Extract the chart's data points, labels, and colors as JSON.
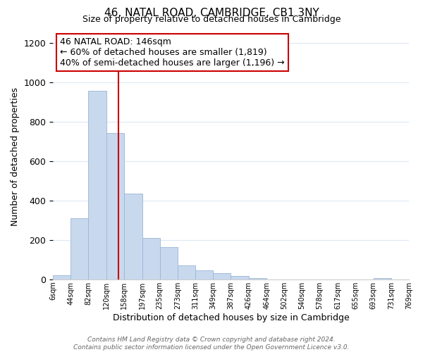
{
  "title": "46, NATAL ROAD, CAMBRIDGE, CB1 3NY",
  "subtitle": "Size of property relative to detached houses in Cambridge",
  "xlabel": "Distribution of detached houses by size in Cambridge",
  "ylabel": "Number of detached properties",
  "bar_color": "#c8d9ee",
  "bar_edge_color": "#9ab5d5",
  "bin_edges": [
    6,
    44,
    82,
    120,
    158,
    197,
    235,
    273,
    311,
    349,
    387,
    426,
    464,
    502,
    540,
    578,
    617,
    655,
    693,
    731,
    769
  ],
  "bin_labels": [
    "6sqm",
    "44sqm",
    "82sqm",
    "120sqm",
    "158sqm",
    "197sqm",
    "235sqm",
    "273sqm",
    "311sqm",
    "349sqm",
    "387sqm",
    "426sqm",
    "464sqm",
    "502sqm",
    "540sqm",
    "578sqm",
    "617sqm",
    "655sqm",
    "693sqm",
    "731sqm",
    "769sqm"
  ],
  "bar_heights": [
    20,
    310,
    960,
    745,
    435,
    210,
    165,
    72,
    47,
    33,
    18,
    7,
    0,
    0,
    0,
    0,
    0,
    0,
    8,
    0,
    0
  ],
  "vline_x": 146,
  "vline_color": "#cc0000",
  "annotation_line1": "46 NATAL ROAD: 146sqm",
  "annotation_line2": "← 60% of detached houses are smaller (1,819)",
  "annotation_line3": "40% of semi-detached houses are larger (1,196) →",
  "annotation_box_color": "#ffffff",
  "annotation_box_edge": "#cc0000",
  "ylim": [
    0,
    1250
  ],
  "yticks": [
    0,
    200,
    400,
    600,
    800,
    1000,
    1200
  ],
  "footer_line1": "Contains HM Land Registry data © Crown copyright and database right 2024.",
  "footer_line2": "Contains public sector information licensed under the Open Government Licence v3.0.",
  "background_color": "#ffffff",
  "grid_color": "#dce8f5"
}
